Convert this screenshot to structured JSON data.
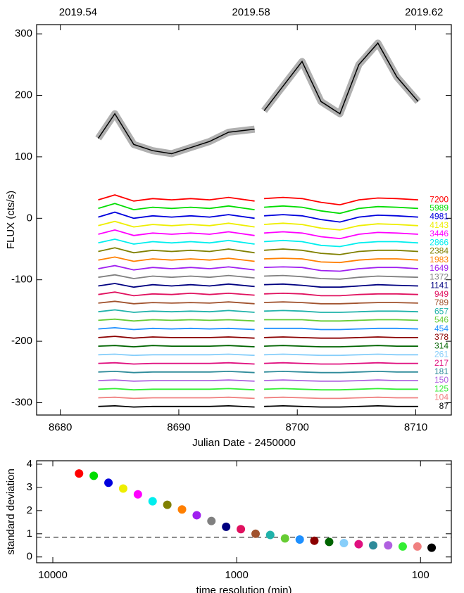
{
  "chart_data": [
    {
      "type": "line",
      "xlabel": "Julian Date - 2450000",
      "ylabel": "FLUX (cts/s)",
      "xlim": [
        8678,
        8713
      ],
      "ylim": [
        -320,
        315
      ],
      "xticks": [
        8680,
        8690,
        8700,
        8710
      ],
      "yticks": [
        -300,
        -200,
        -100,
        0,
        100,
        200,
        300
      ],
      "x2ticks": [
        {
          "value": 8681.5,
          "label": "2019.54"
        },
        {
          "value": 8696.1,
          "label": "2019.58"
        },
        {
          "value": 8710.7,
          "label": "2019.62"
        }
      ],
      "x": [
        8683.2,
        8684.6,
        8686.2,
        8687.8,
        8689.4,
        8691.0,
        8692.6,
        8694.2,
        8696.4,
        8696.8,
        8697.2,
        8698.8,
        8700.4,
        8702.0,
        8703.6,
        8705.2,
        8706.8,
        8708.4,
        8710.2
      ],
      "series": [
        {
          "color": "#000000",
          "values": [
            130,
            170,
            120,
            110,
            105,
            115,
            125,
            140,
            145,
            null,
            175,
            215,
            255,
            190,
            170,
            250,
            285,
            230,
            190
          ]
        },
        {
          "name": "7200",
          "color": "#ff0000",
          "values": [
            30,
            38,
            28,
            32,
            30,
            32,
            30,
            34,
            28,
            null,
            32,
            34,
            32,
            26,
            22,
            30,
            33,
            32,
            30
          ]
        },
        {
          "name": "5989",
          "color": "#00dd00",
          "values": [
            16,
            24,
            14,
            18,
            16,
            18,
            16,
            20,
            14,
            null,
            18,
            20,
            18,
            12,
            8,
            16,
            19,
            18,
            16
          ]
        },
        {
          "name": "4981",
          "color": "#0000dd",
          "values": [
            2,
            10,
            0,
            4,
            2,
            4,
            2,
            6,
            0,
            null,
            4,
            6,
            4,
            -2,
            -6,
            2,
            5,
            4,
            2
          ]
        },
        {
          "name": "4143",
          "color": "#eeee00",
          "values": [
            -12,
            -5,
            -14,
            -10,
            -12,
            -10,
            -12,
            -8,
            -14,
            null,
            -10,
            -8,
            -10,
            -16,
            -19,
            -12,
            -9,
            -10,
            -12
          ]
        },
        {
          "name": "3446",
          "color": "#ff00ff",
          "values": [
            -26,
            -19,
            -28,
            -24,
            -26,
            -24,
            -26,
            -22,
            -28,
            null,
            -24,
            -22,
            -24,
            -30,
            -33,
            -26,
            -23,
            -24,
            -26
          ]
        },
        {
          "name": "2866",
          "color": "#00eeee",
          "values": [
            -40,
            -34,
            -42,
            -38,
            -40,
            -38,
            -40,
            -36,
            -42,
            null,
            -38,
            -36,
            -38,
            -44,
            -46,
            -40,
            -38,
            -38,
            -40
          ]
        },
        {
          "name": "2384",
          "color": "#808000",
          "values": [
            -54,
            -48,
            -56,
            -52,
            -54,
            -52,
            -54,
            -50,
            -56,
            null,
            -52,
            -50,
            -52,
            -57,
            -59,
            -54,
            -52,
            -52,
            -54
          ]
        },
        {
          "name": "1983",
          "color": "#ff7f00",
          "values": [
            -68,
            -63,
            -70,
            -66,
            -68,
            -66,
            -68,
            -65,
            -70,
            null,
            -66,
            -65,
            -66,
            -71,
            -72,
            -68,
            -66,
            -66,
            -68
          ]
        },
        {
          "name": "1649",
          "color": "#a020f0",
          "values": [
            -82,
            -77,
            -84,
            -80,
            -82,
            -80,
            -82,
            -79,
            -84,
            null,
            -80,
            -79,
            -80,
            -85,
            -86,
            -82,
            -80,
            -80,
            -82
          ]
        },
        {
          "name": "1372",
          "color": "#808080",
          "values": [
            -96,
            -92,
            -98,
            -94,
            -96,
            -94,
            -96,
            -93,
            -97,
            null,
            -94,
            -93,
            -95,
            -98,
            -99,
            -96,
            -94,
            -95,
            -96
          ]
        },
        {
          "name": "1141",
          "color": "#000080",
          "values": [
            -110,
            -106,
            -112,
            -108,
            -110,
            -108,
            -110,
            -107,
            -111,
            null,
            -108,
            -107,
            -109,
            -112,
            -112,
            -110,
            -108,
            -109,
            -110
          ]
        },
        {
          "name": "949",
          "color": "#e0115f",
          "values": [
            -124,
            -120,
            -126,
            -123,
            -124,
            -122,
            -124,
            -122,
            -125,
            null,
            -123,
            -122,
            -123,
            -126,
            -126,
            -124,
            -123,
            -123,
            -124
          ]
        },
        {
          "name": "789",
          "color": "#a0522d",
          "values": [
            -138,
            -135,
            -139,
            -137,
            -138,
            -137,
            -138,
            -136,
            -139,
            null,
            -137,
            -136,
            -137,
            -139,
            -139,
            -138,
            -137,
            -137,
            -138
          ]
        },
        {
          "name": "657",
          "color": "#20b2aa",
          "values": [
            -152,
            -149,
            -153,
            -151,
            -152,
            -151,
            -152,
            -150,
            -153,
            null,
            -151,
            -150,
            -151,
            -153,
            -153,
            -152,
            -151,
            -151,
            -152
          ]
        },
        {
          "name": "546",
          "color": "#66cc33",
          "values": [
            -166,
            -164,
            -167,
            -165,
            -166,
            -165,
            -166,
            -165,
            -167,
            null,
            -165,
            -165,
            -165,
            -167,
            -167,
            -166,
            -165,
            -165,
            -166
          ]
        },
        {
          "name": "454",
          "color": "#1e90ff",
          "values": [
            -180,
            -178,
            -181,
            -179,
            -180,
            -179,
            -180,
            -179,
            -181,
            null,
            -179,
            -179,
            -179,
            -181,
            -181,
            -180,
            -179,
            -179,
            -180
          ]
        },
        {
          "name": "378",
          "color": "#8b0000",
          "values": [
            -194,
            -192,
            -195,
            -193,
            -194,
            -194,
            -194,
            -193,
            -195,
            null,
            -194,
            -193,
            -194,
            -195,
            -195,
            -194,
            -193,
            -194,
            -194
          ]
        },
        {
          "name": "314",
          "color": "#006400",
          "values": [
            -208,
            -207,
            -209,
            -207,
            -208,
            -208,
            -208,
            -207,
            -209,
            null,
            -208,
            -207,
            -208,
            -209,
            -209,
            -208,
            -207,
            -208,
            -208
          ]
        },
        {
          "name": "261",
          "color": "#87cefa",
          "values": [
            -222,
            -221,
            -223,
            -222,
            -222,
            -222,
            -222,
            -221,
            -223,
            null,
            -222,
            -221,
            -222,
            -223,
            -223,
            -222,
            -221,
            -222,
            -222
          ]
        },
        {
          "name": "217",
          "color": "#e0107f",
          "values": [
            -236,
            -235,
            -237,
            -236,
            -236,
            -236,
            -236,
            -235,
            -237,
            null,
            -236,
            -235,
            -236,
            -237,
            -237,
            -236,
            -235,
            -236,
            -236
          ]
        },
        {
          "name": "181",
          "color": "#2e8b9a",
          "values": [
            -250,
            -249,
            -251,
            -250,
            -250,
            -250,
            -250,
            -249,
            -251,
            null,
            -250,
            -249,
            -250,
            -251,
            -251,
            -250,
            -249,
            -250,
            -250
          ]
        },
        {
          "name": "150",
          "color": "#b060e0",
          "values": [
            -264,
            -263,
            -265,
            -264,
            -264,
            -264,
            -264,
            -263,
            -265,
            null,
            -264,
            -263,
            -264,
            -265,
            -265,
            -264,
            -263,
            -264,
            -264
          ]
        },
        {
          "name": "125",
          "color": "#33ee33",
          "values": [
            -278,
            -277,
            -279,
            -278,
            -278,
            -278,
            -278,
            -277,
            -279,
            null,
            -278,
            -277,
            -278,
            -279,
            -279,
            -278,
            -277,
            -278,
            -278
          ]
        },
        {
          "name": "104",
          "color": "#f08080",
          "values": [
            -292,
            -291,
            -293,
            -292,
            -292,
            -292,
            -292,
            -291,
            -293,
            null,
            -292,
            -291,
            -292,
            -293,
            -293,
            -292,
            -291,
            -292,
            -292
          ]
        },
        {
          "name": "87",
          "color": "#000000",
          "values": [
            -306,
            -305,
            -307,
            -306,
            -306,
            -306,
            -306,
            -305,
            -307,
            null,
            -306,
            -305,
            -306,
            -307,
            -307,
            -306,
            -305,
            -306,
            -306
          ]
        }
      ]
    },
    {
      "type": "scatter",
      "xlabel": "time resolution (min)",
      "ylabel": "standard deviation",
      "xlog": true,
      "xlim": [
        12250,
        68
      ],
      "ylim": [
        -0.25,
        4.15
      ],
      "xticks": [
        10000,
        1000,
        100
      ],
      "yticks": [
        0,
        1,
        2,
        3,
        4
      ],
      "hline": 0.85,
      "x": [
        7200,
        5989,
        4981,
        4143,
        3446,
        2866,
        2384,
        1983,
        1649,
        1372,
        1141,
        949,
        789,
        657,
        546,
        454,
        378,
        314,
        261,
        217,
        181,
        150,
        125,
        104,
        87
      ],
      "values": [
        3.6,
        3.5,
        3.2,
        2.95,
        2.7,
        2.4,
        2.25,
        2.05,
        1.8,
        1.55,
        1.3,
        1.2,
        1.0,
        0.95,
        0.8,
        0.75,
        0.7,
        0.65,
        0.6,
        0.55,
        0.5,
        0.5,
        0.45,
        0.45,
        0.4
      ],
      "colors": [
        "#ff0000",
        "#00dd00",
        "#0000dd",
        "#eeee00",
        "#ff00ff",
        "#00eeee",
        "#808000",
        "#ff7f00",
        "#a020f0",
        "#808080",
        "#000080",
        "#e0115f",
        "#a0522d",
        "#20b2aa",
        "#66cc33",
        "#1e90ff",
        "#8b0000",
        "#006400",
        "#87cefa",
        "#e0107f",
        "#2e8b9a",
        "#b060e0",
        "#33ee33",
        "#f08080",
        "#000000"
      ]
    }
  ]
}
